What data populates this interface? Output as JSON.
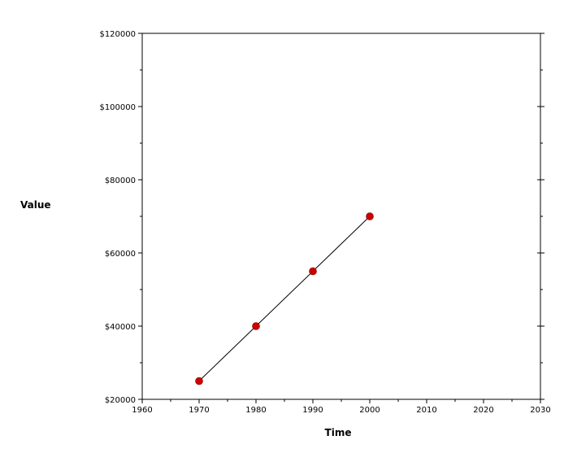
{
  "chart_data": {
    "type": "line",
    "title": "",
    "xlabel": "Time",
    "ylabel": "Value",
    "xlim": [
      1960,
      2030
    ],
    "ylim": [
      20000,
      120000
    ],
    "x_ticks": [
      1960,
      1970,
      1980,
      1990,
      2000,
      2010,
      2020,
      2030
    ],
    "y_ticks": [
      20000,
      40000,
      60000,
      80000,
      100000,
      120000
    ],
    "y_tick_labels": [
      "$20000",
      "$40000",
      "$60000",
      "$80000",
      "$100000",
      "$120000"
    ],
    "series": [
      {
        "x": [
          1970,
          1980,
          1990,
          2000
        ],
        "y": [
          25000,
          40000,
          55000,
          70000
        ],
        "marker_color": "#cc0000",
        "line_color": "#000000"
      }
    ],
    "grid": false,
    "legend": "none"
  }
}
